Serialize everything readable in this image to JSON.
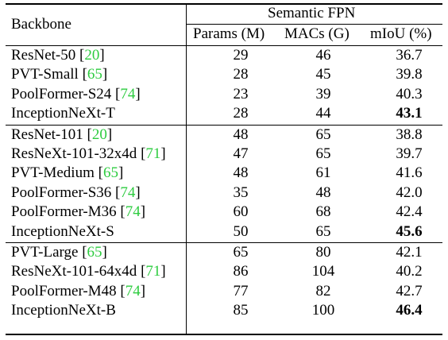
{
  "header": {
    "backbone": "Backbone",
    "group": "Semantic FPN",
    "params": "Params (M)",
    "macs": "MACs (G)",
    "miou": "mIoU (%)"
  },
  "groups": [
    {
      "rows": [
        {
          "name": "ResNet-50",
          "ref": "20",
          "params": "29",
          "macs": "46",
          "miou": "36.7",
          "bold": false
        },
        {
          "name": "PVT-Small",
          "ref": "65",
          "params": "28",
          "macs": "45",
          "miou": "39.8",
          "bold": false
        },
        {
          "name": "PoolFormer-S24",
          "ref": "74",
          "params": "23",
          "macs": "39",
          "miou": "40.3",
          "bold": false
        },
        {
          "name": "InceptionNeXt-T",
          "ref": "",
          "params": "28",
          "macs": "44",
          "miou": "43.1",
          "bold": true
        }
      ]
    },
    {
      "rows": [
        {
          "name": "ResNet-101",
          "ref": "20",
          "params": "48",
          "macs": "65",
          "miou": "38.8",
          "bold": false
        },
        {
          "name": "ResNeXt-101-32x4d",
          "ref": "71",
          "params": "47",
          "macs": "65",
          "miou": "39.7",
          "bold": false
        },
        {
          "name": "PVT-Medium",
          "ref": "65",
          "params": "48",
          "macs": "61",
          "miou": "41.6",
          "bold": false
        },
        {
          "name": "PoolFormer-S36",
          "ref": "74",
          "params": "35",
          "macs": "48",
          "miou": "42.0",
          "bold": false
        },
        {
          "name": "PoolFormer-M36",
          "ref": "74",
          "params": "60",
          "macs": "68",
          "miou": "42.4",
          "bold": false
        },
        {
          "name": "InceptionNeXt-S",
          "ref": "",
          "params": "50",
          "macs": "65",
          "miou": "45.6",
          "bold": true
        }
      ]
    },
    {
      "rows": [
        {
          "name": "PVT-Large",
          "ref": "65",
          "params": "65",
          "macs": "80",
          "miou": "42.1",
          "bold": false
        },
        {
          "name": "ResNeXt-101-64x4d",
          "ref": "71",
          "params": "86",
          "macs": "104",
          "miou": "40.2",
          "bold": false
        },
        {
          "name": "PoolFormer-M48",
          "ref": "74",
          "params": "77",
          "macs": "82",
          "miou": "42.7",
          "bold": false
        },
        {
          "name": "InceptionNeXt-B",
          "ref": "",
          "params": "85",
          "macs": "100",
          "miou": "46.4",
          "bold": true
        }
      ]
    }
  ]
}
